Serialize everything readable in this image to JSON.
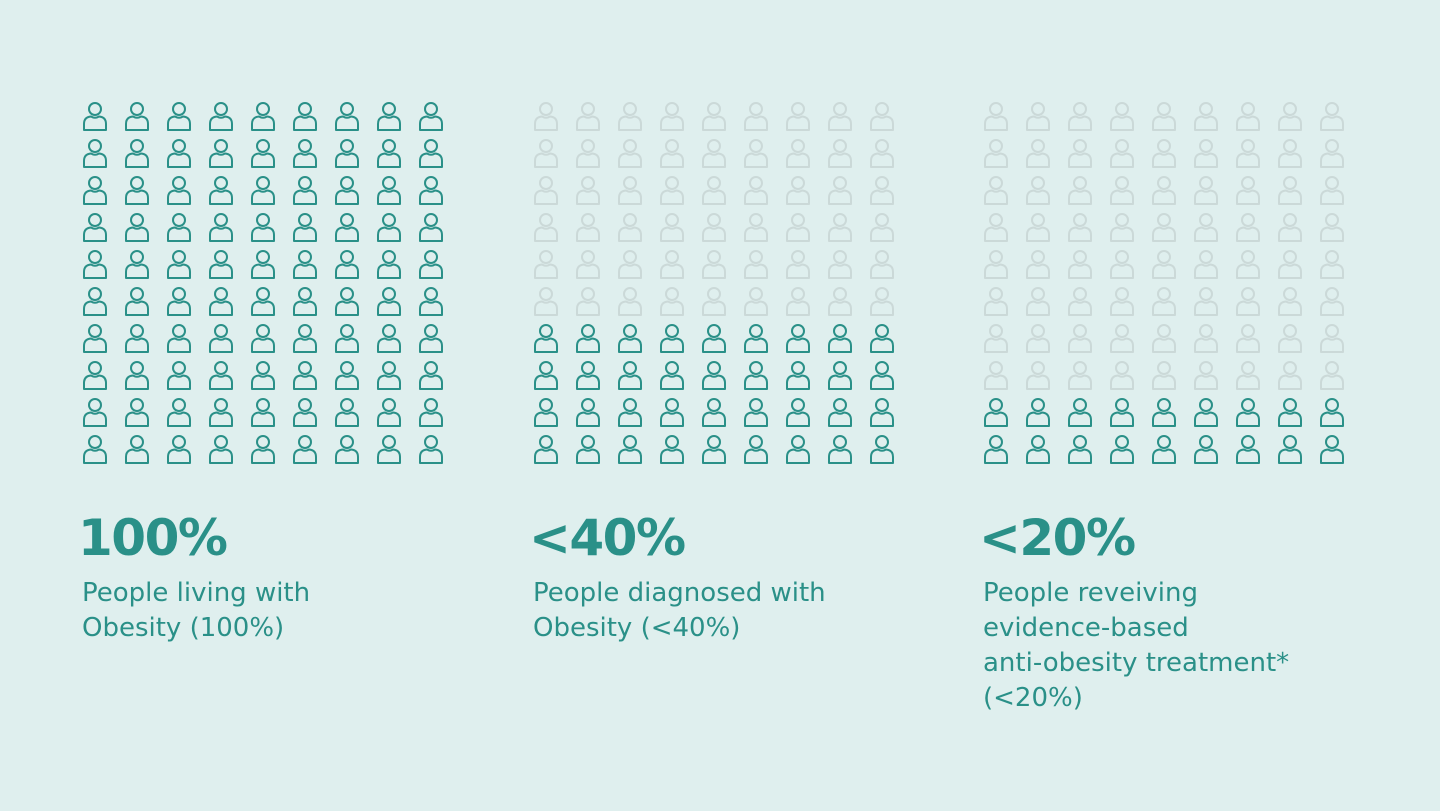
{
  "colors": {
    "background": "#dfefee",
    "highlight": "#2a9088",
    "muted": "#cbd9d8",
    "text": "#2a9088"
  },
  "icon": "person-outline-icon",
  "chart_data": [
    {
      "type": "waffle",
      "rows": 10,
      "cols": 9,
      "highlighted_fraction": 1.0,
      "label": "100%",
      "caption_lines": [
        "People living with",
        "Obesity (100%)"
      ]
    },
    {
      "type": "waffle",
      "rows": 10,
      "cols": 9,
      "highlighted_fraction": 0.4,
      "label": "<40%",
      "caption_lines": [
        "People diagnosed with",
        "Obesity (<40%)"
      ]
    },
    {
      "type": "waffle",
      "rows": 10,
      "cols": 9,
      "highlighted_fraction": 0.2,
      "label": "<20%",
      "caption_lines": [
        "People reveiving",
        "evidence-based",
        "anti-obesity treatment*",
        "(<20%)"
      ]
    }
  ]
}
